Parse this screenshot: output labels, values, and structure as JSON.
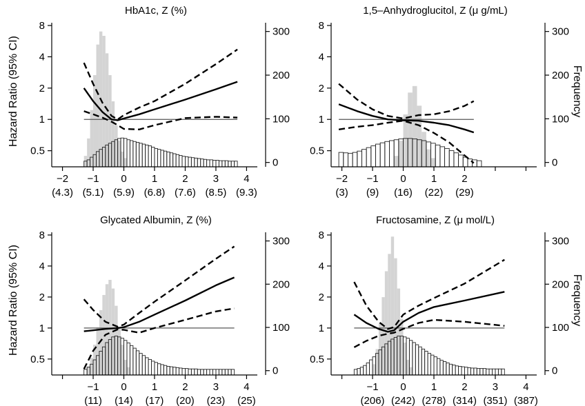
{
  "chart_data": [
    {
      "type": "line",
      "title": "HbA1c, Z (%)",
      "ylabel": "Hazard Ratio (95% CI)",
      "ylabel2": "",
      "x_ticks": [
        "−2",
        "−1",
        "0",
        "1",
        "2",
        "3",
        "4"
      ],
      "x_ticks_secondary": [
        "(4.3)",
        "(5.1)",
        "(5.9)",
        "(6.8)",
        "(7.6)",
        "(8.5)",
        "(9.3)"
      ],
      "y_ticks": [
        "0.5",
        "1",
        "2",
        "4",
        "8"
      ],
      "y2_ticks": [
        "0",
        "100",
        "200",
        "300"
      ],
      "y_scale": "log",
      "ylim": [
        0.35,
        8.5
      ],
      "y2lim": [
        -10,
        320
      ],
      "xlim": [
        -2.35,
        4.35
      ],
      "reference_line": 1,
      "series": [
        {
          "role": "estimate",
          "x": [
            -1.3,
            -1.0,
            -0.7,
            -0.4,
            -0.2,
            0.0,
            0.5,
            1.0,
            2.0,
            3.0,
            3.7
          ],
          "y": [
            2.0,
            1.5,
            1.18,
            1.0,
            0.98,
            1.02,
            1.12,
            1.25,
            1.55,
            1.95,
            2.3
          ]
        },
        {
          "role": "upper_ci",
          "x": [
            -1.3,
            -1.0,
            -0.7,
            -0.4,
            -0.2,
            0.0,
            0.5,
            1.0,
            2.0,
            3.0,
            3.7
          ],
          "y": [
            3.5,
            2.2,
            1.45,
            1.08,
            1.0,
            1.1,
            1.3,
            1.5,
            2.2,
            3.4,
            4.7
          ]
        },
        {
          "role": "lower_ci",
          "x": [
            -1.3,
            -1.0,
            -0.7,
            -0.4,
            -0.2,
            0.0,
            0.5,
            1.0,
            2.0,
            3.0,
            3.7
          ],
          "y": [
            1.2,
            1.12,
            1.04,
            0.95,
            0.88,
            0.81,
            0.8,
            0.88,
            1.03,
            1.06,
            1.04
          ]
        }
      ],
      "histogram_gray": {
        "x_start": -1.3,
        "bin_width": 0.1,
        "counts": [
          15,
          55,
          120,
          200,
          270,
          300,
          290,
          250,
          200,
          140,
          85,
          50,
          25,
          10
        ]
      },
      "histogram_outline": {
        "x_start": -1.3,
        "bin_width": 0.1,
        "counts": [
          3,
          6,
          12,
          18,
          25,
          30,
          35,
          40,
          44,
          48,
          52,
          55,
          56,
          55,
          52,
          50,
          48,
          46,
          44,
          42,
          40,
          38,
          35,
          32,
          30,
          28,
          26,
          24,
          22,
          20,
          18,
          16,
          14,
          13,
          12,
          11,
          10,
          9,
          8,
          7,
          6,
          6,
          5,
          5,
          4,
          4,
          4,
          3,
          3,
          3
        ]
      }
    },
    {
      "type": "line",
      "title": "1,5–Anhydroglucitol, Z (μ g/mL)",
      "ylabel": "",
      "ylabel2": "Frequency",
      "x_ticks": [
        "−2",
        "−1",
        "0",
        "1",
        "2"
      ],
      "x_ticks_secondary": [
        "(3)",
        "(9)",
        "(16)",
        "(22)",
        "(29)"
      ],
      "y_ticks": [
        "0.5",
        "1",
        "2",
        "4",
        "8"
      ],
      "y2_ticks": [
        "0",
        "100",
        "200",
        "300"
      ],
      "y_scale": "log",
      "ylim": [
        0.35,
        8.5
      ],
      "y2lim": [
        -10,
        320
      ],
      "xlim": [
        -2.35,
        4.35
      ],
      "reference_line": 1,
      "series": [
        {
          "role": "estimate",
          "x": [
            -2.1,
            -1.5,
            -1.0,
            -0.5,
            0.0,
            0.5,
            1.0,
            1.5,
            2.0,
            2.3
          ],
          "y": [
            1.4,
            1.2,
            1.08,
            1.0,
            0.98,
            0.97,
            0.93,
            0.88,
            0.8,
            0.75
          ]
        },
        {
          "role": "upper_ci",
          "x": [
            -2.1,
            -1.5,
            -1.0,
            -0.5,
            0.0,
            0.5,
            1.0,
            1.5,
            2.0,
            2.3
          ],
          "y": [
            2.2,
            1.55,
            1.25,
            1.08,
            1.02,
            1.1,
            1.12,
            1.2,
            1.35,
            1.5
          ]
        },
        {
          "role": "lower_ci",
          "x": [
            -2.1,
            -1.5,
            -1.0,
            -0.5,
            0.0,
            0.5,
            1.0,
            1.5,
            2.0,
            2.3
          ],
          "y": [
            0.8,
            0.85,
            0.88,
            0.93,
            0.97,
            0.88,
            0.74,
            0.6,
            0.45,
            0.38
          ]
        }
      ],
      "histogram_gray": {
        "x_start": -0.3,
        "bin_width": 0.15,
        "counts": [
          15,
          50,
          110,
          160,
          175,
          130,
          70,
          30,
          10
        ]
      },
      "histogram_outline": {
        "x_start": -2.1,
        "bin_width": 0.15,
        "counts": [
          23,
          22,
          21,
          23,
          26,
          30,
          34,
          38,
          42,
          45,
          48,
          50,
          52,
          54,
          55,
          55,
          54,
          52,
          50,
          47,
          44,
          40,
          36,
          32,
          27,
          22,
          17,
          12,
          8,
          6,
          4
        ]
      }
    },
    {
      "type": "line",
      "title": "Glycated Albumin, Z (%)",
      "ylabel": "Hazard Ratio (95% CI)",
      "ylabel2": "",
      "x_ticks": [
        "−1",
        "0",
        "1",
        "2",
        "3",
        "4"
      ],
      "x_ticks_secondary": [
        "(11)",
        "(14)",
        "(17)",
        "(20)",
        "(23)",
        "(25)"
      ],
      "y_ticks": [
        "0.5",
        "1",
        "2",
        "4",
        "8"
      ],
      "y2_ticks": [
        "0",
        "100",
        "200",
        "300"
      ],
      "y_scale": "log",
      "ylim": [
        0.35,
        8.5
      ],
      "y2lim": [
        -10,
        320
      ],
      "xlim": [
        -2.35,
        4.35
      ],
      "reference_line": 1,
      "series": [
        {
          "role": "estimate",
          "x": [
            -1.3,
            -1.0,
            -0.6,
            -0.2,
            0.0,
            0.5,
            1.0,
            2.0,
            3.0,
            3.6
          ],
          "y": [
            0.93,
            0.95,
            0.98,
            1.0,
            1.02,
            1.15,
            1.35,
            1.85,
            2.6,
            3.1
          ]
        },
        {
          "role": "upper_ci",
          "x": [
            -1.3,
            -1.0,
            -0.6,
            -0.2,
            0.0,
            0.5,
            1.0,
            2.0,
            3.0,
            3.6
          ],
          "y": [
            1.9,
            1.5,
            1.15,
            1.03,
            1.08,
            1.4,
            1.8,
            2.9,
            4.7,
            6.2
          ]
        },
        {
          "role": "lower_ci",
          "x": [
            -1.3,
            -1.0,
            -0.6,
            -0.2,
            0.0,
            0.5,
            1.0,
            2.0,
            3.0,
            3.6
          ],
          "y": [
            0.4,
            0.6,
            0.86,
            0.97,
            0.96,
            0.9,
            1.0,
            1.2,
            1.45,
            1.55
          ]
        }
      ],
      "histogram_gray": {
        "x_start": -1.2,
        "bin_width": 0.1,
        "counts": [
          10,
          30,
          60,
          100,
          140,
          175,
          200,
          210,
          190,
          150,
          100,
          60,
          25,
          8
        ]
      },
      "histogram_outline": {
        "x_start": -1.3,
        "bin_width": 0.1,
        "counts": [
          3,
          8,
          15,
          25,
          35,
          45,
          55,
          65,
          72,
          78,
          80,
          78,
          75,
          70,
          64,
          58,
          52,
          46,
          40,
          35,
          30,
          26,
          22,
          19,
          16,
          14,
          12,
          10,
          9,
          8,
          7,
          6,
          5,
          5,
          4,
          4,
          4,
          3,
          3,
          3,
          3,
          3,
          3,
          3,
          3,
          3,
          3,
          3,
          3
        ]
      }
    },
    {
      "type": "line",
      "title": "Fructosamine, Z (μ mol/L)",
      "ylabel": "",
      "ylabel2": "Frequency",
      "x_ticks": [
        "−1",
        "0",
        "1",
        "2",
        "3",
        "4"
      ],
      "x_ticks_secondary": [
        "(206)",
        "(242)",
        "(278)",
        "(314)",
        "(351)",
        "(387)"
      ],
      "y_ticks": [
        "0.5",
        "1",
        "2",
        "4",
        "8"
      ],
      "y2_ticks": [
        "0",
        "100",
        "200",
        "300"
      ],
      "y_scale": "log",
      "ylim": [
        0.35,
        8.5
      ],
      "y2lim": [
        -10,
        320
      ],
      "xlim": [
        -2.35,
        4.35
      ],
      "reference_line": 1,
      "series": [
        {
          "role": "estimate",
          "x": [
            -1.6,
            -1.2,
            -0.8,
            -0.5,
            -0.3,
            0.0,
            0.5,
            1.0,
            2.0,
            3.3
          ],
          "y": [
            1.35,
            1.12,
            0.98,
            0.92,
            0.95,
            1.15,
            1.4,
            1.6,
            1.85,
            2.25
          ]
        },
        {
          "role": "upper_ci",
          "x": [
            -1.6,
            -1.2,
            -0.8,
            -0.5,
            -0.3,
            0.0,
            0.5,
            1.0,
            2.0,
            3.3
          ],
          "y": [
            2.8,
            1.65,
            1.15,
            0.98,
            1.02,
            1.35,
            1.65,
            1.95,
            2.7,
            4.6
          ]
        },
        {
          "role": "lower_ci",
          "x": [
            -1.6,
            -1.2,
            -0.8,
            -0.5,
            -0.3,
            0.0,
            0.5,
            1.0,
            2.0,
            3.3
          ],
          "y": [
            0.65,
            0.75,
            0.84,
            0.88,
            0.9,
            0.98,
            1.12,
            1.2,
            1.15,
            1.05
          ]
        }
      ],
      "histogram_gray": {
        "x_start": -1.0,
        "bin_width": 0.1,
        "counts": [
          15,
          50,
          110,
          170,
          230,
          270,
          310,
          260,
          190,
          120,
          65,
          25,
          8
        ]
      },
      "histogram_outline": {
        "x_start": -1.6,
        "bin_width": 0.1,
        "counts": [
          3,
          5,
          8,
          12,
          18,
          25,
          32,
          40,
          48,
          55,
          62,
          68,
          73,
          77,
          80,
          80,
          78,
          75,
          70,
          65,
          60,
          55,
          50,
          45,
          40,
          36,
          32,
          28,
          24,
          21,
          18,
          15,
          13,
          11,
          10,
          9,
          8,
          7,
          6,
          6,
          5,
          5,
          5,
          4,
          4,
          4,
          4,
          4,
          4
        ]
      }
    }
  ]
}
